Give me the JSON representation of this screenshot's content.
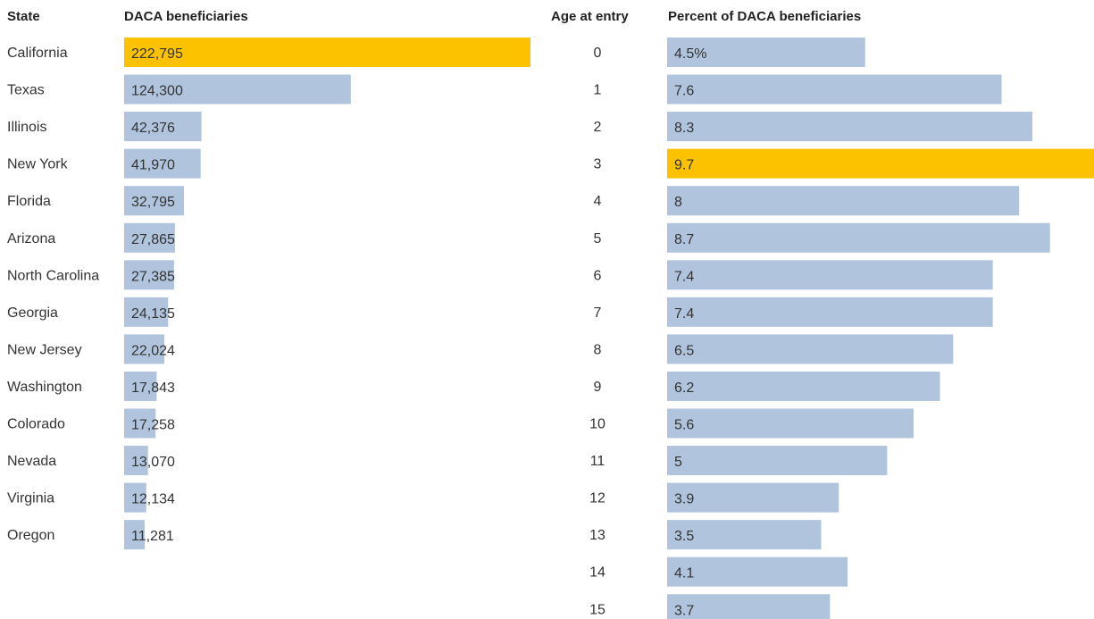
{
  "chart_data": [
    {
      "type": "bar",
      "orientation": "horizontal",
      "category_header": "State",
      "value_header": "DACA beneficiaries",
      "categories": [
        "California",
        "Texas",
        "Illinois",
        "New York",
        "Florida",
        "Arizona",
        "North Carolina",
        "Georgia",
        "New Jersey",
        "Washington",
        "Colorado",
        "Nevada",
        "Virginia",
        "Oregon"
      ],
      "values": [
        222795,
        124300,
        42376,
        41970,
        32795,
        27865,
        27385,
        24135,
        22024,
        17843,
        17258,
        13070,
        12134,
        11281
      ],
      "value_labels": [
        "222,795",
        "124,300",
        "42,376",
        "41,970",
        "32,795",
        "27,865",
        "27,385",
        "24,135",
        "22,024",
        "17,843",
        "17,258",
        "13,070",
        "12,134",
        "11,281"
      ],
      "xlim": [
        0,
        222795
      ],
      "highlight_index": 0
    },
    {
      "type": "bar",
      "orientation": "horizontal",
      "category_header": "Age at entry",
      "value_header": "Percent of DACA beneficiaries",
      "categories": [
        "0",
        "1",
        "2",
        "3",
        "4",
        "5",
        "6",
        "7",
        "8",
        "9",
        "10",
        "11",
        "12",
        "13",
        "14",
        "15"
      ],
      "values": [
        4.5,
        7.6,
        8.3,
        9.7,
        8,
        8.7,
        7.4,
        7.4,
        6.5,
        6.2,
        5.6,
        5,
        3.9,
        3.5,
        4.1,
        3.7
      ],
      "value_labels": [
        "4.5%",
        "7.6",
        "8.3",
        "9.7",
        "8",
        "8.7",
        "7.4",
        "7.4",
        "6.5",
        "6.2",
        "5.6",
        "5",
        "3.9",
        "3.5",
        "4.1",
        "3.7"
      ],
      "xlim": [
        0,
        9.7
      ],
      "highlight_index": 3
    }
  ],
  "colors": {
    "bar": "#b0c4de",
    "highlight": "#fcc200"
  }
}
